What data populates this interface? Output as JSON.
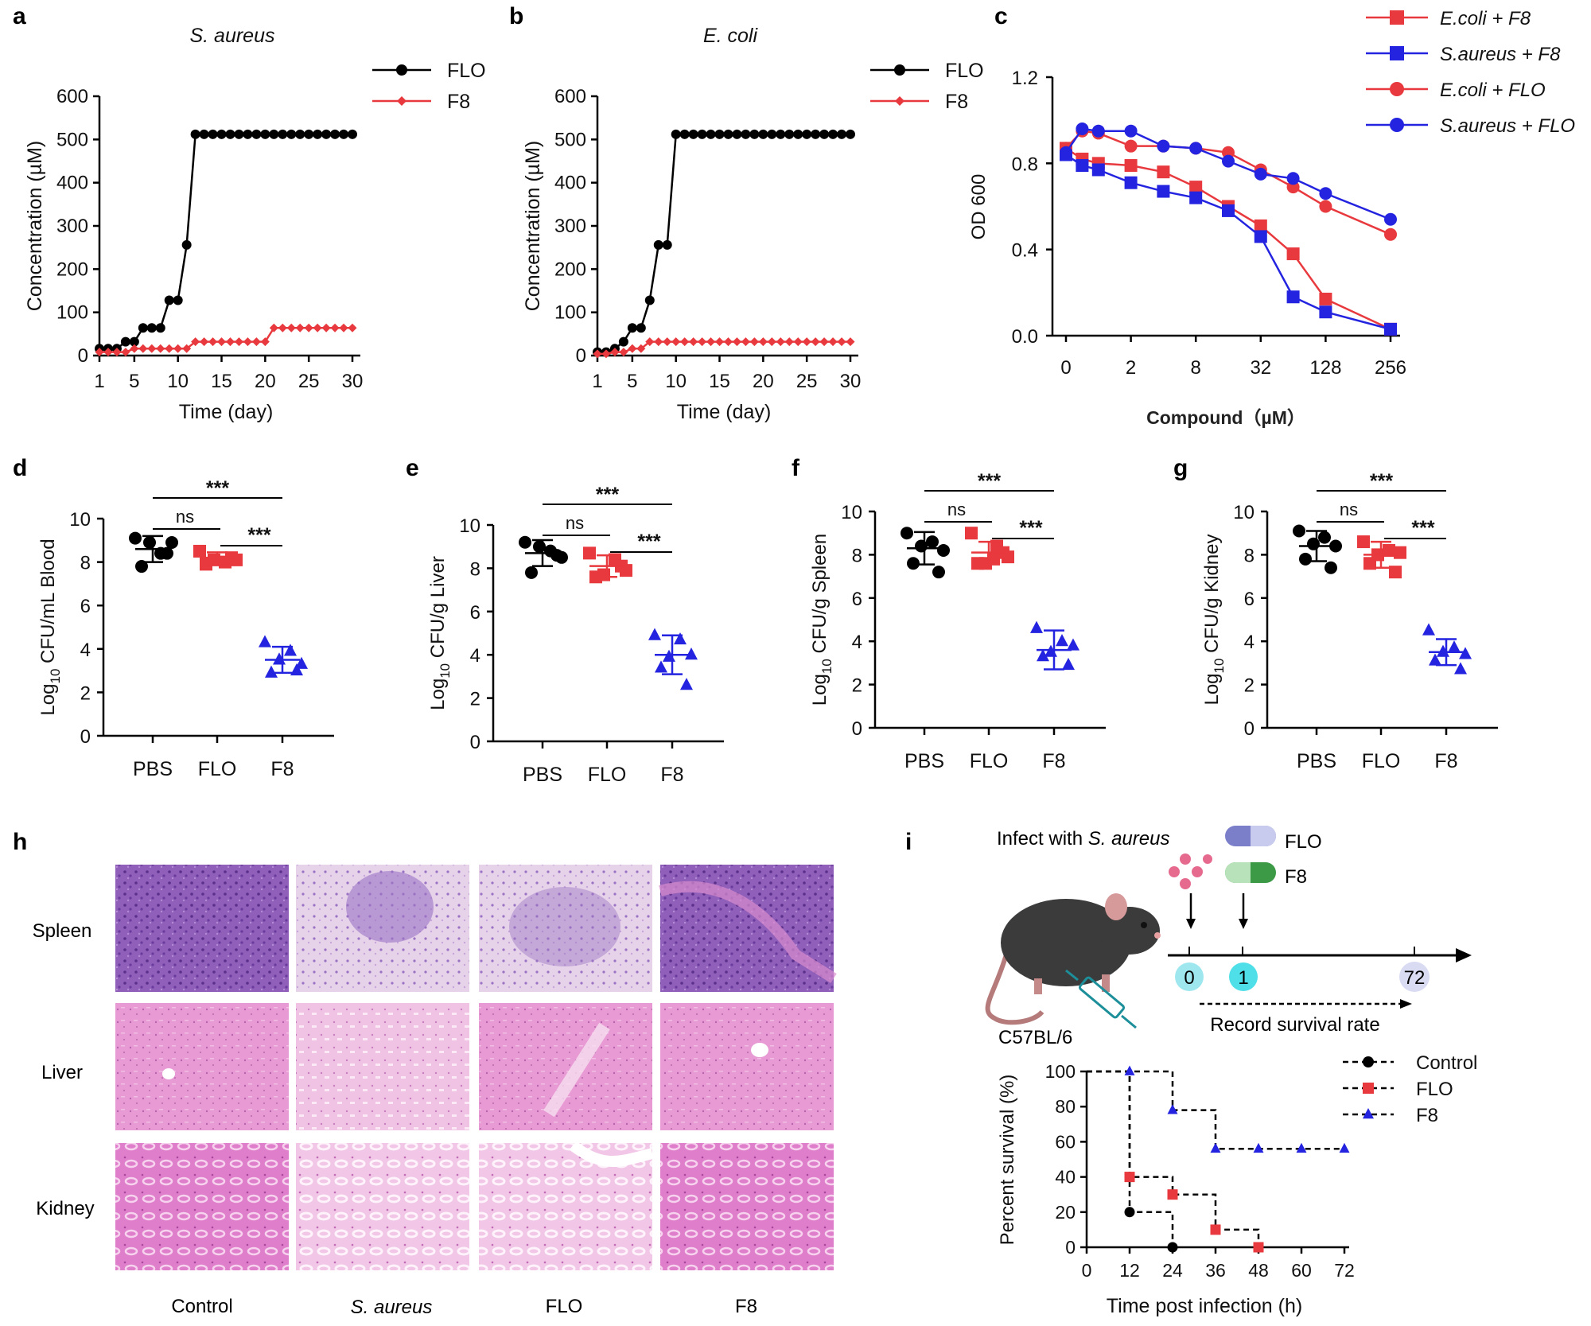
{
  "figure": {
    "panel_letters": [
      "a",
      "b",
      "c",
      "d",
      "e",
      "f",
      "g",
      "h",
      "i"
    ]
  },
  "colors": {
    "black": "#000000",
    "red": "#e8393e",
    "blue": "#2424e0",
    "he_purple": "#8a5bb8",
    "he_pink": "#e58fcf"
  },
  "chart_data": [
    {
      "id": "a",
      "type": "line",
      "title": "S. aureus",
      "xlabel": "Time (day)",
      "ylabel": "Concentration (µM)",
      "xlim": [
        1,
        30
      ],
      "ylim": [
        0,
        600
      ],
      "xticks": [
        1,
        5,
        10,
        15,
        20,
        25,
        30
      ],
      "yticks": [
        0,
        100,
        200,
        300,
        400,
        500,
        600
      ],
      "legend": "top-right",
      "x": [
        1,
        2,
        3,
        4,
        5,
        6,
        7,
        8,
        9,
        10,
        11,
        12,
        13,
        14,
        15,
        16,
        17,
        18,
        19,
        20,
        21,
        22,
        23,
        24,
        25,
        26,
        27,
        28,
        29,
        30
      ],
      "series": [
        {
          "name": "FLO",
          "color": "#000000",
          "marker": "circle",
          "values": [
            16,
            16,
            16,
            32,
            32,
            64,
            64,
            64,
            128,
            128,
            256,
            512,
            512,
            512,
            512,
            512,
            512,
            512,
            512,
            512,
            512,
            512,
            512,
            512,
            512,
            512,
            512,
            512,
            512,
            512
          ]
        },
        {
          "name": "F8",
          "color": "#e8393e",
          "marker": "diamond",
          "values": [
            8,
            8,
            8,
            8,
            16,
            16,
            16,
            16,
            16,
            16,
            16,
            32,
            32,
            32,
            32,
            32,
            32,
            32,
            32,
            32,
            64,
            64,
            64,
            64,
            64,
            64,
            64,
            64,
            64,
            64
          ]
        }
      ]
    },
    {
      "id": "b",
      "type": "line",
      "title": "E. coli",
      "xlabel": "Time (day)",
      "ylabel": "Concentration (µM)",
      "xlim": [
        1,
        30
      ],
      "ylim": [
        0,
        600
      ],
      "xticks": [
        1,
        5,
        10,
        15,
        20,
        25,
        30
      ],
      "yticks": [
        0,
        100,
        200,
        300,
        400,
        500,
        600
      ],
      "legend": "top-right",
      "x": [
        1,
        2,
        3,
        4,
        5,
        6,
        7,
        8,
        9,
        10,
        11,
        12,
        13,
        14,
        15,
        16,
        17,
        18,
        19,
        20,
        21,
        22,
        23,
        24,
        25,
        26,
        27,
        28,
        29,
        30
      ],
      "series": [
        {
          "name": "FLO",
          "color": "#000000",
          "marker": "circle",
          "values": [
            8,
            8,
            16,
            32,
            64,
            64,
            128,
            256,
            256,
            512,
            512,
            512,
            512,
            512,
            512,
            512,
            512,
            512,
            512,
            512,
            512,
            512,
            512,
            512,
            512,
            512,
            512,
            512,
            512,
            512
          ]
        },
        {
          "name": "F8",
          "color": "#e8393e",
          "marker": "diamond",
          "values": [
            4,
            4,
            8,
            8,
            16,
            16,
            32,
            32,
            32,
            32,
            32,
            32,
            32,
            32,
            32,
            32,
            32,
            32,
            32,
            32,
            32,
            32,
            32,
            32,
            32,
            32,
            32,
            32,
            32,
            32
          ]
        }
      ]
    },
    {
      "id": "c",
      "type": "line",
      "title": "",
      "xlabel": "Compound（µM）",
      "ylabel": "OD 600",
      "ylim": [
        0,
        1.2
      ],
      "yticks": [
        "0.0",
        "0.4",
        "0.8",
        "1.2"
      ],
      "xtick_labels": [
        "0",
        "2",
        "8",
        "32",
        "128",
        "256"
      ],
      "xtick_positions": [
        0,
        2,
        4,
        6,
        8,
        10
      ],
      "legend": "top-right",
      "x": [
        0,
        0.5,
        1,
        2,
        3,
        4,
        5,
        6,
        7,
        8,
        10
      ],
      "series": [
        {
          "name": "E.coli + F8",
          "color": "#e8393e",
          "marker": "square",
          "values": [
            0.87,
            0.82,
            0.8,
            0.79,
            0.76,
            0.69,
            0.6,
            0.51,
            0.38,
            0.17,
            0.03
          ]
        },
        {
          "name": "S.aureus + F8",
          "color": "#2424e0",
          "marker": "square",
          "values": [
            0.84,
            0.79,
            0.77,
            0.71,
            0.67,
            0.64,
            0.58,
            0.46,
            0.18,
            0.11,
            0.03
          ]
        },
        {
          "name": "E.coli + FLO",
          "color": "#e8393e",
          "marker": "circle",
          "values": [
            0.87,
            0.95,
            0.94,
            0.88,
            0.88,
            0.87,
            0.85,
            0.77,
            0.69,
            0.6,
            0.47
          ]
        },
        {
          "name": "S.aureus + FLO",
          "color": "#2424e0",
          "marker": "circle",
          "values": [
            0.85,
            0.96,
            0.95,
            0.95,
            0.88,
            0.87,
            0.81,
            0.75,
            0.73,
            0.66,
            0.54
          ]
        }
      ]
    },
    {
      "id": "d",
      "type": "scatter",
      "ylabel": "Log10 CFU/mL Blood",
      "ylabel_main": "Log",
      "ylabel_sub": "10",
      "ylabel_rest": " CFU/mL Blood",
      "ylim": [
        0,
        10
      ],
      "yticks": [
        0,
        2,
        4,
        6,
        8,
        10
      ],
      "categories": [
        "PBS",
        "FLO",
        "F8"
      ],
      "groups": [
        {
          "name": "PBS",
          "color": "#000000",
          "marker": "circle",
          "mean": 8.6,
          "sd": 0.6,
          "points": [
            9.1,
            8.4,
            8.9,
            7.8,
            8.4,
            8.9
          ]
        },
        {
          "name": "FLO",
          "color": "#e8393e",
          "marker": "square",
          "mean": 8.2,
          "sd": 0.25,
          "points": [
            8.5,
            8.0,
            8.1,
            7.9,
            8.2,
            8.1
          ]
        },
        {
          "name": "F8",
          "color": "#2424e0",
          "marker": "triangle",
          "mean": 3.5,
          "sd": 0.6,
          "points": [
            4.3,
            3.9,
            3.3,
            2.9,
            3.0,
            3.5
          ]
        }
      ],
      "significance": [
        {
          "pair": [
            "PBS",
            "F8"
          ],
          "label": "***"
        },
        {
          "pair": [
            "PBS",
            "FLO"
          ],
          "label": "ns"
        },
        {
          "pair": [
            "FLO",
            "F8"
          ],
          "label": "***"
        }
      ]
    },
    {
      "id": "e",
      "type": "scatter",
      "ylabel": "Log10 CFU/g Liver",
      "ylabel_main": "Log",
      "ylabel_sub": "10",
      "ylabel_rest": " CFU/g Liver",
      "ylim": [
        0,
        10
      ],
      "yticks": [
        0,
        2,
        4,
        6,
        8,
        10
      ],
      "categories": [
        "PBS",
        "FLO",
        "F8"
      ],
      "groups": [
        {
          "name": "PBS",
          "color": "#000000",
          "marker": "circle",
          "mean": 8.7,
          "sd": 0.6,
          "points": [
            9.2,
            8.8,
            8.5,
            7.8,
            8.6,
            9.0
          ]
        },
        {
          "name": "FLO",
          "color": "#e8393e",
          "marker": "square",
          "mean": 8.1,
          "sd": 0.5,
          "points": [
            8.7,
            8.4,
            7.9,
            7.6,
            8.1,
            7.7
          ]
        },
        {
          "name": "F8",
          "color": "#2424e0",
          "marker": "triangle",
          "mean": 4.0,
          "sd": 0.9,
          "points": [
            4.9,
            4.7,
            4.0,
            3.4,
            2.6,
            3.9
          ]
        }
      ],
      "significance": [
        {
          "pair": [
            "PBS",
            "F8"
          ],
          "label": "***"
        },
        {
          "pair": [
            "PBS",
            "FLO"
          ],
          "label": "ns"
        },
        {
          "pair": [
            "FLO",
            "F8"
          ],
          "label": "***"
        }
      ]
    },
    {
      "id": "f",
      "type": "scatter",
      "ylabel": "Log10 CFU/g Spleen",
      "ylabel_main": "Log",
      "ylabel_sub": "10",
      "ylabel_rest": " CFU/g Spleen",
      "ylim": [
        0,
        10
      ],
      "yticks": [
        0,
        2,
        4,
        6,
        8,
        10
      ],
      "categories": [
        "PBS",
        "FLO",
        "F8"
      ],
      "groups": [
        {
          "name": "PBS",
          "color": "#000000",
          "marker": "circle",
          "mean": 8.3,
          "sd": 0.75,
          "points": [
            9.0,
            8.6,
            8.2,
            7.6,
            7.2,
            8.4
          ]
        },
        {
          "name": "FLO",
          "color": "#e8393e",
          "marker": "square",
          "mean": 8.1,
          "sd": 0.5,
          "points": [
            9.0,
            8.4,
            7.9,
            7.6,
            8.1,
            7.6,
            7.8
          ]
        },
        {
          "name": "F8",
          "color": "#2424e0",
          "marker": "triangle",
          "mean": 3.6,
          "sd": 0.9,
          "points": [
            4.6,
            4.0,
            3.8,
            3.3,
            2.9,
            3.5
          ]
        }
      ],
      "significance": [
        {
          "pair": [
            "PBS",
            "F8"
          ],
          "label": "***"
        },
        {
          "pair": [
            "PBS",
            "FLO"
          ],
          "label": "ns"
        },
        {
          "pair": [
            "FLO",
            "F8"
          ],
          "label": "***"
        }
      ]
    },
    {
      "id": "g",
      "type": "scatter",
      "ylabel": "Log10 CFU/g Kidney",
      "ylabel_main": "Log",
      "ylabel_sub": "10",
      "ylabel_rest": " CFU/g Kidney",
      "ylim": [
        0,
        10
      ],
      "yticks": [
        0,
        2,
        4,
        6,
        8,
        10
      ],
      "categories": [
        "PBS",
        "FLO",
        "F8"
      ],
      "groups": [
        {
          "name": "PBS",
          "color": "#000000",
          "marker": "circle",
          "mean": 8.4,
          "sd": 0.7,
          "points": [
            9.1,
            8.8,
            8.4,
            7.8,
            7.4,
            8.5
          ]
        },
        {
          "name": "FLO",
          "color": "#e8393e",
          "marker": "square",
          "mean": 8.0,
          "sd": 0.6,
          "points": [
            8.6,
            8.2,
            8.1,
            7.6,
            7.2,
            8.0
          ]
        },
        {
          "name": "F8",
          "color": "#2424e0",
          "marker": "triangle",
          "mean": 3.5,
          "sd": 0.6,
          "points": [
            4.5,
            3.7,
            3.4,
            3.1,
            2.7,
            3.5
          ]
        }
      ],
      "significance": [
        {
          "pair": [
            "PBS",
            "F8"
          ],
          "label": "***"
        },
        {
          "pair": [
            "PBS",
            "FLO"
          ],
          "label": "ns"
        },
        {
          "pair": [
            "FLO",
            "F8"
          ],
          "label": "***"
        }
      ]
    },
    {
      "id": "i",
      "type": "line",
      "subtype": "survival-step",
      "xlabel": "Time post infection (h)",
      "ylabel": "Percent survival (%)",
      "xlim": [
        0,
        72
      ],
      "ylim": [
        0,
        100
      ],
      "xticks": [
        0,
        12,
        24,
        36,
        48,
        60,
        72
      ],
      "yticks": [
        0,
        20,
        40,
        60,
        80,
        100
      ],
      "legend": "top-right",
      "series": [
        {
          "name": "Control",
          "color": "#000000",
          "marker": "circle",
          "steps": [
            [
              0,
              100
            ],
            [
              12,
              20
            ],
            [
              24,
              0
            ]
          ],
          "points": [
            [
              12,
              20
            ],
            [
              24,
              0
            ]
          ]
        },
        {
          "name": "FLO",
          "color": "#e8393e",
          "marker": "square",
          "steps": [
            [
              0,
              100
            ],
            [
              12,
              40
            ],
            [
              24,
              30
            ],
            [
              36,
              10
            ],
            [
              48,
              0
            ]
          ],
          "points": [
            [
              12,
              40
            ],
            [
              24,
              30
            ],
            [
              36,
              10
            ],
            [
              48,
              0
            ]
          ]
        },
        {
          "name": "F8",
          "color": "#2424e0",
          "marker": "triangle",
          "steps": [
            [
              0,
              100
            ],
            [
              12,
              100
            ],
            [
              24,
              78
            ],
            [
              36,
              56
            ],
            [
              72,
              56
            ]
          ],
          "points": [
            [
              12,
              100
            ],
            [
              24,
              78
            ],
            [
              36,
              56
            ],
            [
              48,
              56
            ],
            [
              60,
              56
            ],
            [
              72,
              56
            ]
          ]
        }
      ]
    }
  ],
  "histology": {
    "row_labels": [
      "Spleen",
      "Liver",
      "Kidney"
    ],
    "col_labels_plain": [
      "Control",
      "FLO",
      "F8"
    ],
    "col_label_italic": "S. aureus"
  },
  "schematic": {
    "infect_prefix": "Infect with ",
    "infect_species": "S. aureus",
    "drug1": "FLO",
    "drug2": "F8",
    "mouse_strain": "C57BL/6",
    "timeline": [
      "0",
      "1",
      "72"
    ],
    "record": "Record survival rate"
  }
}
